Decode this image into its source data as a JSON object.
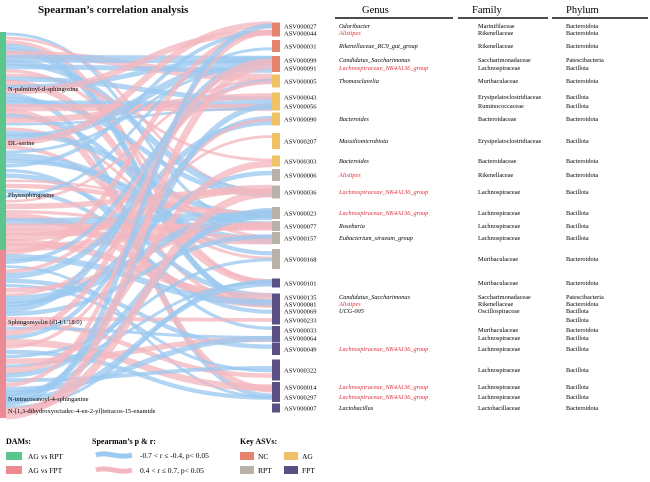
{
  "title": "Spearman’s correlation analysis",
  "colors": {
    "ag_vs_rpt": "#5cc58b",
    "ag_vs_fpt": "#ec8a93",
    "neg_link": "#9cc9ef",
    "pos_link": "#f3b7bf",
    "nc": "#e6846b",
    "ag": "#f0c265",
    "rpt": "#b9b2a9",
    "fpt": "#5b4f84"
  },
  "metabolites": [
    {
      "label": "N-palmitoyl-d-sphingosine",
      "group": "ag_vs_rpt"
    },
    {
      "label": "DL-serine",
      "group": "ag_vs_rpt"
    },
    {
      "label": "Phytosphingosine",
      "group": "ag_vs_rpt"
    },
    {
      "label": "Sphingomyelin (d14:1/18:0)",
      "group": "ag_vs_fpt"
    },
    {
      "label": "N-tetracosanoyl-4-sphinganine",
      "group": "ag_vs_fpt"
    },
    {
      "label": "N-[1,3-dihydroxyoctadec-4-en-2-yl]tetracos-15-enamide",
      "group": "ag_vs_fpt"
    }
  ],
  "headers": {
    "genus": "Genus",
    "family": "Family",
    "phylum": "Phylum"
  },
  "asvs": [
    {
      "id": "ASV000027",
      "group": "nc",
      "genus": "Odoribacter",
      "genus_red": false,
      "family": "Marinifilaceae",
      "phylum": "Bacteroidota"
    },
    {
      "id": "ASV000044",
      "group": "nc",
      "genus": "Alistipes",
      "genus_red": true,
      "family": "Rikenellaceae",
      "phylum": "Bacteroidota"
    },
    {
      "id": "ASV000031",
      "group": "nc",
      "genus": "Rikenellaceae_RC9_gut_group",
      "genus_red": false,
      "family": "Rikenellaceae",
      "phylum": "Bacteroidota"
    },
    {
      "id": "ASV000099",
      "group": "nc",
      "genus": "Candidatus_Saccharimonas",
      "genus_red": false,
      "family": "Saccharimonadaceae",
      "phylum": "Patescibacteria"
    },
    {
      "id": "ASV000091",
      "group": "nc",
      "genus": "Lachnospiraceae_NK4A136_group",
      "genus_red": true,
      "family": "Lachnospiraceae",
      "phylum": "Bacillota"
    },
    {
      "id": "ASV000005",
      "group": "ag",
      "genus": "Thomasclavelia",
      "genus_red": false,
      "family": "Muribaculaceae",
      "phylum": "Bacteroidota"
    },
    {
      "id": "ASV000043",
      "group": "ag",
      "genus": "",
      "genus_red": false,
      "family": "Erysipelatoclostridiaceae",
      "phylum": "Bacillota"
    },
    {
      "id": "ASV000056",
      "group": "ag",
      "genus": "",
      "genus_red": false,
      "family": "Ruminococcaceae",
      "phylum": "Bacillota"
    },
    {
      "id": "ASV000090",
      "group": "ag",
      "genus": "Bacteroides",
      "genus_red": false,
      "family": "Bacteroidaceae",
      "phylum": "Bacteroidota"
    },
    {
      "id": "ASV000207",
      "group": "ag",
      "genus": "Massiliomicrobiota",
      "genus_red": false,
      "family": "Erysipelatoclostridiaceae",
      "phylum": "Bacillota"
    },
    {
      "id": "ASV000303",
      "group": "ag",
      "genus": "Bacteroides",
      "genus_red": false,
      "family": "Bacteroidaceae",
      "phylum": "Bacteroidota"
    },
    {
      "id": "ASV000006",
      "group": "rpt",
      "genus": "Alistipes",
      "genus_red": true,
      "family": "Rikenellaceae",
      "phylum": "Bacteroidota"
    },
    {
      "id": "ASV000036",
      "group": "rpt",
      "genus": "Lachnospiraceae_NK4A136_group",
      "genus_red": true,
      "family": "Lachnospiraceae",
      "phylum": "Bacillota"
    },
    {
      "id": "ASV000023",
      "group": "rpt",
      "genus": "Lachnospiraceae_NK4A136_group",
      "genus_red": true,
      "family": "Lachnospiraceae",
      "phylum": "Bacillota"
    },
    {
      "id": "ASV000077",
      "group": "rpt",
      "genus": "Roseburia",
      "genus_red": false,
      "family": "Lachnospiraceae",
      "phylum": "Bacillota"
    },
    {
      "id": "ASV000157",
      "group": "rpt",
      "genus": "Eubacterium_siraeum_group",
      "genus_red": false,
      "family": "Lachnospiraceae",
      "phylum": "Bacillota"
    },
    {
      "id": "ASV000168",
      "group": "rpt",
      "genus": "",
      "genus_red": false,
      "family": "Muribaculaceae",
      "phylum": "Bacteroidota"
    },
    {
      "id": "ASV000101",
      "group": "fpt",
      "genus": "",
      "genus_red": false,
      "family": "Muribaculaceae",
      "phylum": "Bacteroidota"
    },
    {
      "id": "ASV000135",
      "group": "fpt",
      "genus": "Candidatus_Saccharimonas",
      "genus_red": false,
      "family": "Saccharimonadaceae",
      "phylum": "Patescibacteria"
    },
    {
      "id": "ASV000081",
      "group": "fpt",
      "genus": "Alistipes",
      "genus_red": true,
      "family": "Rikenellaceae",
      "phylum": "Bacteroidota"
    },
    {
      "id": "ASV000069",
      "group": "fpt",
      "genus": "UCG-005",
      "genus_red": false,
      "family": "Oscillospiraceae",
      "phylum": "Bacillota"
    },
    {
      "id": "ASV000233",
      "group": "fpt",
      "genus": "",
      "genus_red": false,
      "family": "",
      "phylum": "Bacillota"
    },
    {
      "id": "ASV000033",
      "group": "fpt",
      "genus": "",
      "genus_red": false,
      "family": "Muribaculaceae",
      "phylum": "Bacteroidota"
    },
    {
      "id": "ASV000064",
      "group": "fpt",
      "genus": "",
      "genus_red": false,
      "family": "Lachnospiraceae",
      "phylum": "Bacillota"
    },
    {
      "id": "ASV000049",
      "group": "fpt",
      "genus": "Lachnospiraceae_NK4A136_group",
      "genus_red": true,
      "family": "Lachnospiraceae",
      "phylum": "Bacillota"
    },
    {
      "id": "ASV000322",
      "group": "fpt",
      "genus": "",
      "genus_red": false,
      "family": "Lachnospiraceae",
      "phylum": "Bacillota"
    },
    {
      "id": "ASV000014",
      "group": "fpt",
      "genus": "Lachnospiraceae_NK4A136_group",
      "genus_red": true,
      "family": "Lachnospiraceae",
      "phylum": "Bacillota"
    },
    {
      "id": "ASV000297",
      "group": "fpt",
      "genus": "Lachnospiraceae_NK4A136_group",
      "genus_red": true,
      "family": "Lachnospiraceae",
      "phylum": "Bacillota"
    },
    {
      "id": "ASV000007",
      "group": "fpt",
      "genus": "Lactobacillus",
      "genus_red": false,
      "family": "Lactobacillaceae",
      "phylum": "Bacteroidota"
    }
  ],
  "legend": {
    "dams_title": "DAMs:",
    "dams": [
      {
        "label": "AG vs RPT",
        "color": "#5cc58b"
      },
      {
        "label": "AG vs FPT",
        "color": "#ec8a93"
      }
    ],
    "spearman_title": "Spearman’s p & r:",
    "spearman": [
      {
        "label": "-0.7 < r ≤ -0.4, p< 0.05",
        "color": "#9cc9ef"
      },
      {
        "label": "0.4 < r ≤ 0.7, p< 0.05",
        "color": "#f3b7bf"
      }
    ],
    "key_title": "Key ASVs:",
    "key": [
      {
        "label": "NC",
        "color": "#e6846b"
      },
      {
        "label": "AG",
        "color": "#f0c265"
      },
      {
        "label": "RPT",
        "color": "#b9b2a9"
      },
      {
        "label": "FPT",
        "color": "#5b4f84"
      }
    ]
  }
}
